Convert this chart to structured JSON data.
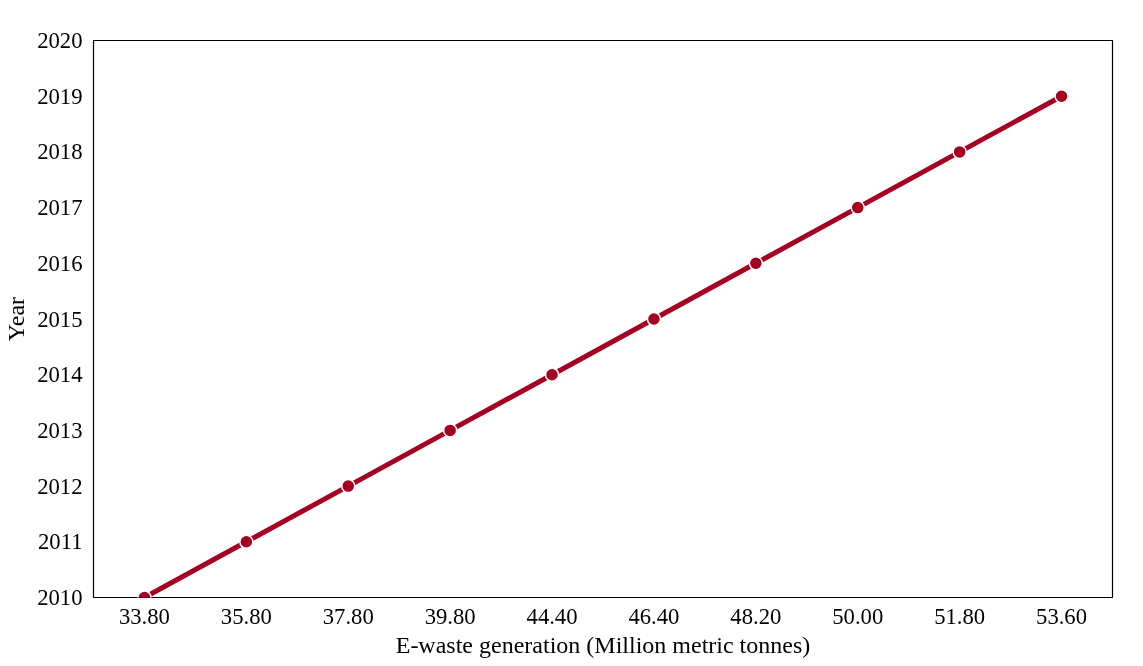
{
  "chart_data": {
    "type": "line",
    "xlabel": "E-waste generation (Million metric tonnes)",
    "ylabel": "Year",
    "categories": [
      "33.80",
      "35.80",
      "37.80",
      "39.80",
      "44.40",
      "46.40",
      "48.20",
      "50.00",
      "51.80",
      "53.60"
    ],
    "series": [
      {
        "color": "#a50021",
        "values": [
          2010,
          2011,
          2012,
          2013,
          2014,
          2015,
          2016,
          2017,
          2018,
          2019
        ]
      }
    ],
    "ylim": [
      2010,
      2020
    ],
    "yticks": [
      2010,
      2011,
      2012,
      2013,
      2014,
      2015,
      2016,
      2017,
      2018,
      2019,
      2020
    ],
    "grid": false,
    "marker": "circle",
    "line_style": "solid"
  }
}
